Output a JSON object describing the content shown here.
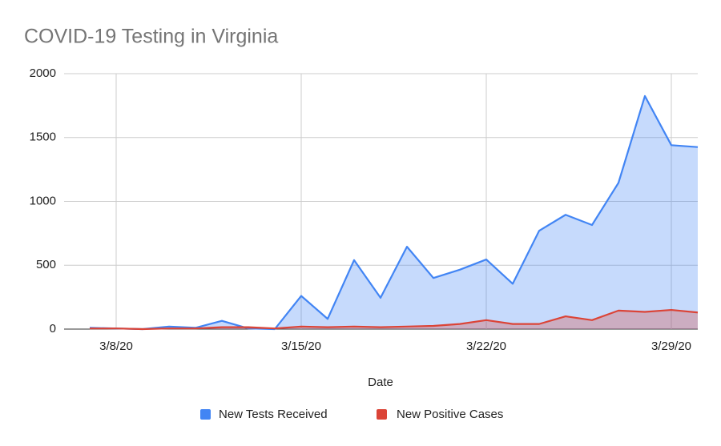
{
  "chart_data": {
    "type": "area",
    "title": "COVID-19 Testing in Virginia",
    "x_label": "Date",
    "x": [
      "3/7/20",
      "3/8/20",
      "3/9/20",
      "3/10/20",
      "3/11/20",
      "3/12/20",
      "3/13/20",
      "3/14/20",
      "3/15/20",
      "3/16/20",
      "3/17/20",
      "3/18/20",
      "3/19/20",
      "3/20/20",
      "3/21/20",
      "3/22/20",
      "3/23/20",
      "3/24/20",
      "3/25/20",
      "3/26/20",
      "3/27/20",
      "3/28/20",
      "3/29/20",
      "3/30/20"
    ],
    "series": [
      {
        "name": "New Tests Received",
        "color": "#4285f4",
        "values": [
          10,
          5,
          0,
          20,
          10,
          65,
          5,
          0,
          260,
          80,
          540,
          245,
          645,
          400,
          465,
          545,
          355,
          770,
          895,
          815,
          1145,
          1825,
          1440,
          1425
        ]
      },
      {
        "name": "New Positive Cases",
        "color": "#db4437",
        "values": [
          5,
          5,
          0,
          5,
          5,
          15,
          15,
          5,
          20,
          15,
          20,
          15,
          20,
          25,
          40,
          70,
          40,
          40,
          100,
          70,
          145,
          135,
          150,
          130
        ]
      }
    ],
    "xlim": [
      "3/7/20",
      "3/30/20"
    ],
    "xticks": [
      "3/8/20",
      "3/15/20",
      "3/22/20",
      "3/29/20"
    ],
    "ylim": [
      0,
      2000
    ],
    "yticks": [
      0,
      500,
      1000,
      1500,
      2000
    ],
    "grid": true,
    "legend": "bottom"
  }
}
